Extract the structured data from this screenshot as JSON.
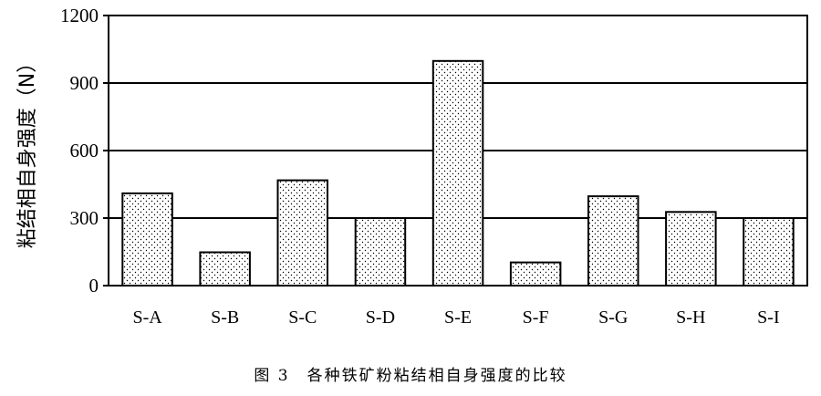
{
  "chart_data": {
    "type": "bar",
    "ylabel": "粘结相自身强度（N）",
    "xlabel": "",
    "categories": [
      "S-A",
      "S-B",
      "S-C",
      "S-D",
      "S-E",
      "S-F",
      "S-G",
      "S-H",
      "S-I"
    ],
    "values": [
      410,
      148,
      468,
      300,
      998,
      103,
      397,
      327,
      300
    ],
    "ylim": [
      0,
      1200
    ],
    "yticks": [
      0,
      300,
      600,
      900,
      1200
    ],
    "grid": true,
    "bar_fill": "dotted",
    "legend": "none"
  },
  "caption": "图 3　各种铁矿粉粘结相自身强度的比较",
  "colors": {
    "background": "#ffffff",
    "ink": "#000000"
  }
}
